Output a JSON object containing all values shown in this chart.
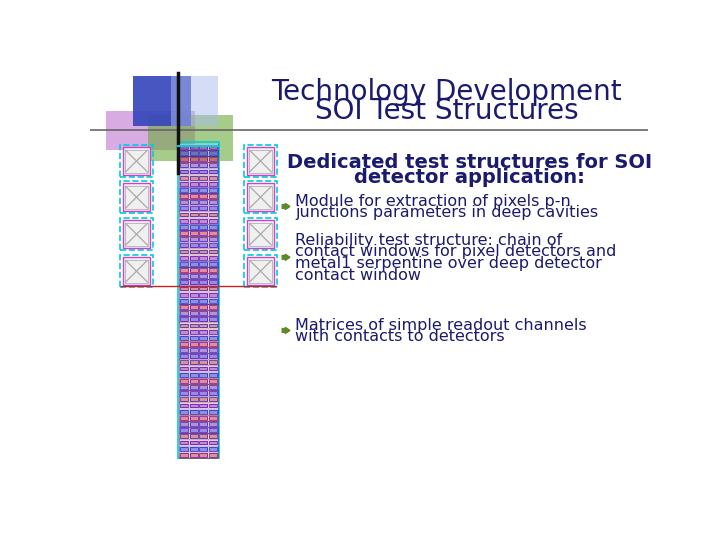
{
  "title_line1": "Technology Development",
  "title_line2": "SOI Test Structures",
  "title_color": "#1a1a6e",
  "title_fontsize": 20,
  "subtitle_line1": "Dedicated test structures for SOI",
  "subtitle_line2": "detector application:",
  "text_color": "#1a1a6e",
  "bullet_color": "#5a8a2a",
  "bullet_text_color": "#1a1a6e",
  "bg_color": "#ffffff",
  "divider_color": "#888888",
  "deco_blue": "#3344bb",
  "deco_purple": "#bb66cc",
  "deco_green": "#6aaa3a",
  "cell_outer_cyan": "#00ccdd",
  "cell_mid_purple": "#cc44cc",
  "cell_fill": "#f5eef8",
  "cell_cross": "#aaaaaa",
  "strip_red": "#cc3333",
  "strip_blue": "#3333cc",
  "strip_purple": "#8833aa"
}
